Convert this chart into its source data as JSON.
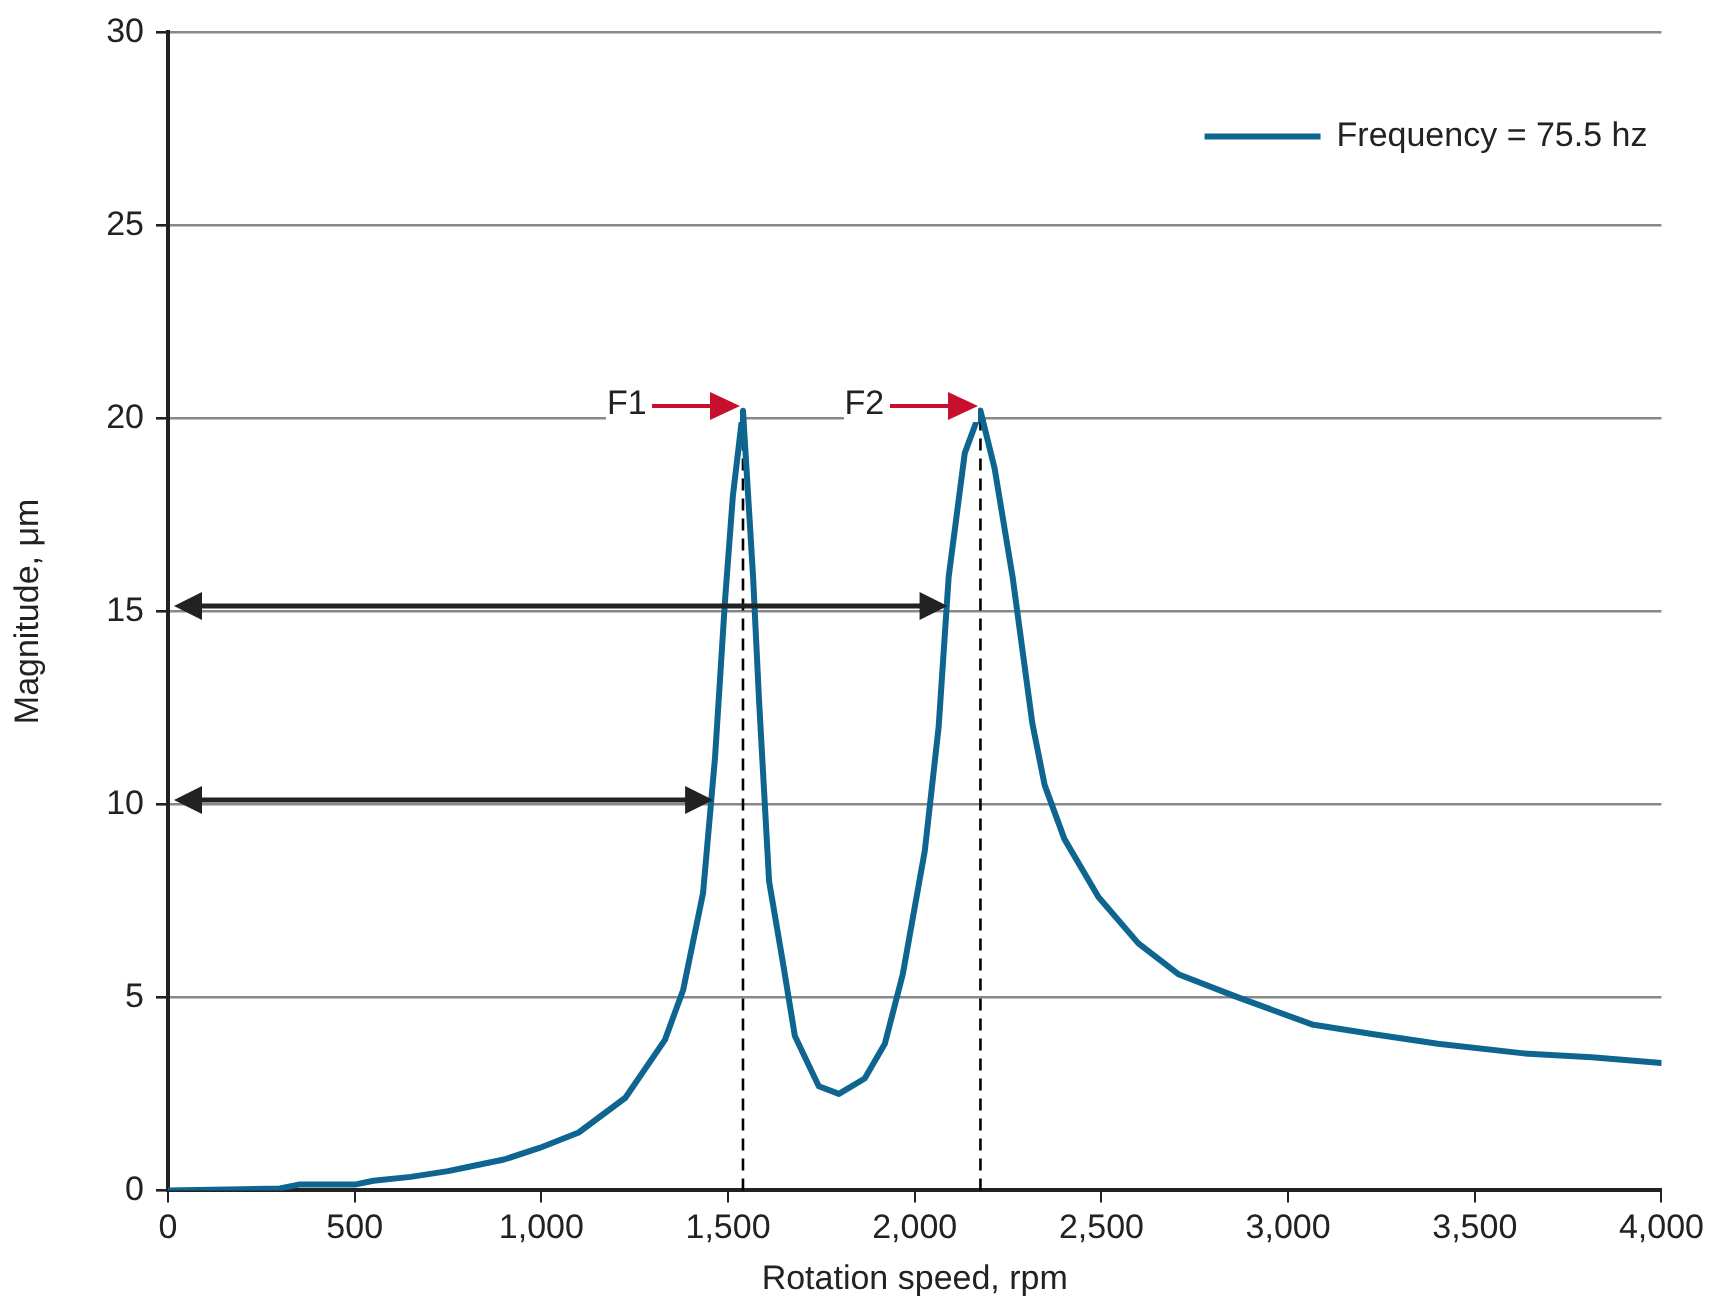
{
  "chart_data": {
    "type": "line",
    "xlabel": "Rotation speed, rpm",
    "ylabel": "Magnitude, μm",
    "xlim": [
      0,
      4000
    ],
    "ylim": [
      0,
      30
    ],
    "xticks": [
      0,
      500,
      {
        "value": 1000,
        "label": "1,000"
      },
      {
        "value": 1500,
        "label": "1,500"
      },
      {
        "value": 2000,
        "label": "2,000"
      },
      {
        "value": 2500,
        "label": "2,500"
      },
      {
        "value": 3000,
        "label": "3,000"
      },
      {
        "value": 3500,
        "label": "3,500"
      },
      {
        "value": 4000,
        "label": "4,000"
      }
    ],
    "yticks": [
      0,
      5,
      10,
      15,
      20,
      25,
      30
    ],
    "grid": "y",
    "legend": "top right",
    "marker": "none",
    "line_style": "solid",
    "series": [
      {
        "name": "Frequency = 75.5 hz",
        "color": "#0e6690",
        "x": [
          0,
          300,
          350,
          500,
          550,
          650,
          750,
          800,
          900,
          995,
          1100,
          1225,
          1331,
          1380,
          1433,
          1465,
          1492,
          1513,
          1540,
          1567,
          1583,
          1610,
          1647,
          1679,
          1743,
          1797,
          1866,
          1920,
          1968,
          2027,
          2064,
          2091,
          2134,
          2176,
          2214,
          2262,
          2315,
          2348,
          2401,
          2492,
          2599,
          2706,
          2866,
          3064,
          3225,
          3401,
          3631,
          3813,
          4000
        ],
        "values": [
          0,
          0.05,
          0.15,
          0.15,
          0.25,
          0.35,
          0.5,
          0.6,
          0.8,
          1.1,
          1.5,
          2.4,
          3.9,
          5.2,
          7.7,
          11.2,
          15.3,
          18,
          20.2,
          15.9,
          12.7,
          8,
          5.9,
          4,
          2.7,
          2.5,
          2.9,
          3.8,
          5.6,
          8.8,
          12,
          15.9,
          19.1,
          20.2,
          18.7,
          15.9,
          12.1,
          10.5,
          9.1,
          7.6,
          6.4,
          5.6,
          5,
          4.3,
          4.05,
          3.8,
          3.55,
          3.45,
          3.3
        ]
      }
    ],
    "ref_lines": [
      {
        "axis": "x",
        "value": 1540,
        "color": "#000000",
        "line_style": "dashed"
      },
      {
        "axis": "x",
        "value": 2176,
        "color": "#000000",
        "line_style": "dashed"
      }
    ],
    "annotations": [
      {
        "text": "F1",
        "x": 1540,
        "y": 20.2
      },
      {
        "text": "F2",
        "x": 2176,
        "y": 20.2
      }
    ]
  }
}
